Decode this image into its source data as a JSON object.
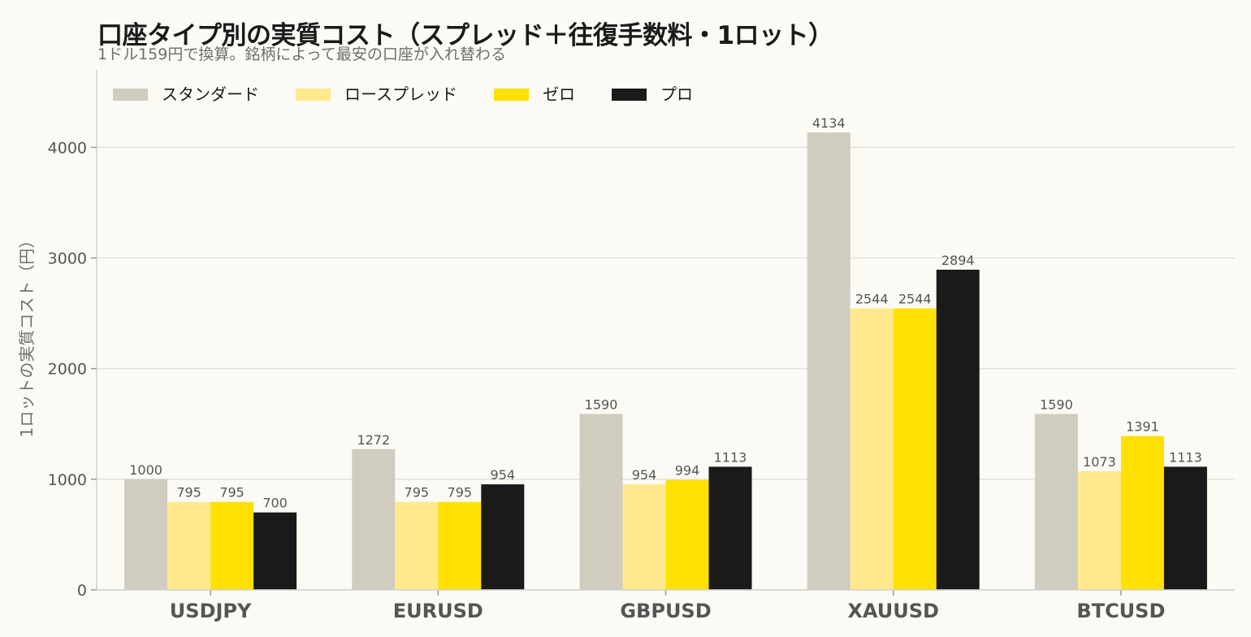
{
  "chart_data": {
    "type": "bar",
    "title": "口座タイプ別の実質コスト（スプレッド＋往復手数料・1ロット）",
    "subtitle": "1ドル159円で換算。銘柄によって最安の口座が入れ替わる",
    "xlabel": "",
    "ylabel": "1ロットの実質コスト（円）",
    "ylim": [
      0,
      4700
    ],
    "yticks": [
      0,
      1000,
      2000,
      3000,
      4000
    ],
    "grid": true,
    "legend_position": "top-left",
    "categories": [
      "USDJPY",
      "EURUSD",
      "GBPUSD",
      "XAUUSD",
      "BTCUSD"
    ],
    "series": [
      {
        "name": "スタンダード",
        "color": "#D0CCC0",
        "values": [
          1000,
          1272,
          1590,
          4134,
          1590
        ]
      },
      {
        "name": "ロースプレッド",
        "color": "#FFE98C",
        "values": [
          795,
          795,
          954,
          2544,
          1073
        ]
      },
      {
        "name": "ゼロ",
        "color": "#FFE000",
        "values": [
          795,
          795,
          994,
          2544,
          1391
        ]
      },
      {
        "name": "プロ",
        "color": "#1A1A1A",
        "values": [
          700,
          954,
          1113,
          2894,
          1113
        ]
      }
    ]
  }
}
